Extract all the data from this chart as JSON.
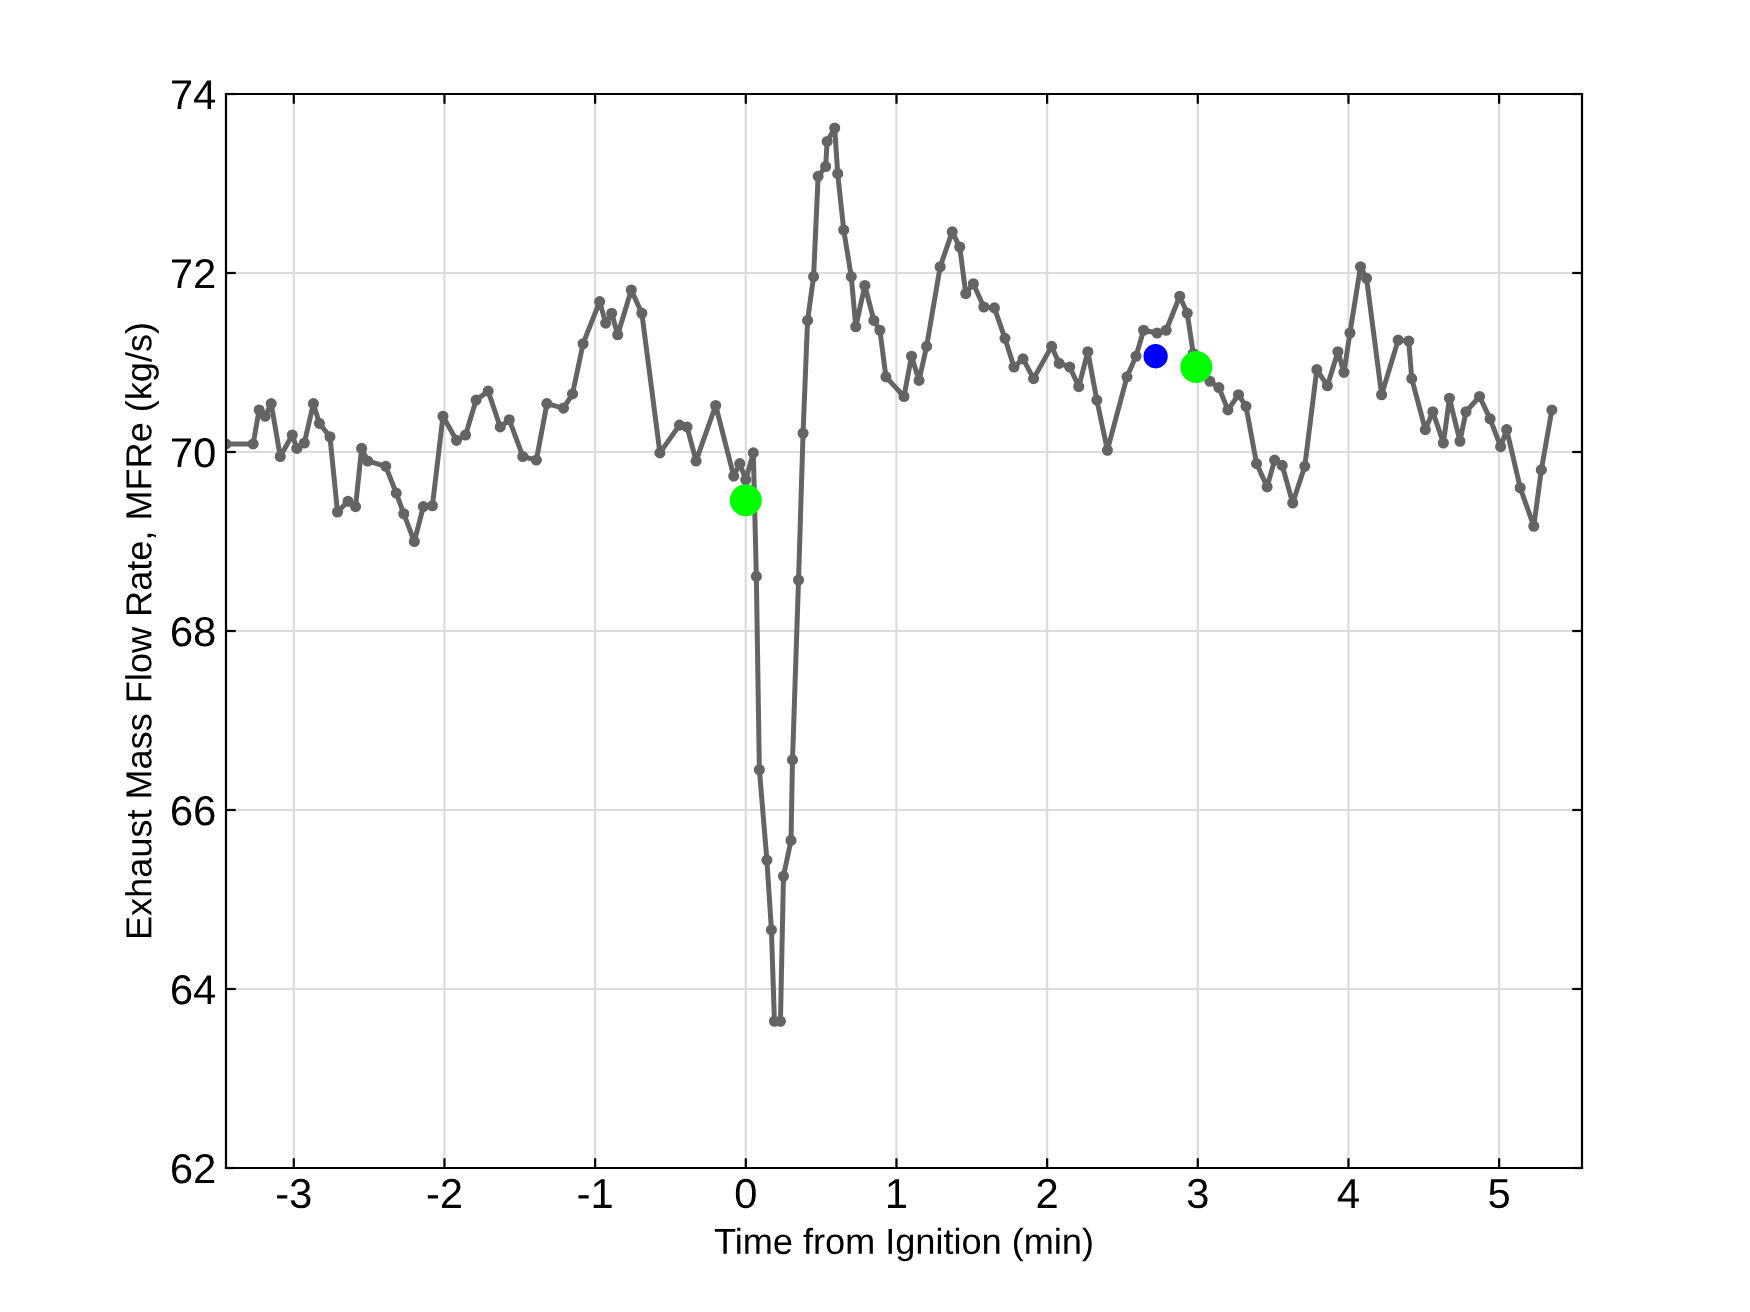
{
  "chart_data": {
    "type": "line",
    "xlabel": "Time from Ignition (min)",
    "ylabel": "Exhaust Mass Flow Rate, MFRe (kg/s)",
    "xlim": [
      -3.45,
      5.55
    ],
    "ylim": [
      62,
      74
    ],
    "xticks": [
      -3,
      -2,
      -1,
      0,
      1,
      2,
      3,
      4,
      5
    ],
    "yticks": [
      62,
      64,
      66,
      68,
      70,
      72,
      74
    ],
    "grid": true,
    "legend": false,
    "series": [
      {
        "color": "#646464",
        "marker": "circle",
        "line_style": "solid",
        "x": [
          -3.45,
          -3.27,
          -3.23,
          -3.19,
          -3.15,
          -3.09,
          -3.01,
          -2.98,
          -2.93,
          -2.87,
          -2.83,
          -2.76,
          -2.71,
          -2.64,
          -2.59,
          -2.55,
          -2.51,
          -2.39,
          -2.32,
          -2.27,
          -2.2,
          -2.14,
          -2.08,
          -2.01,
          -1.92,
          -1.86,
          -1.79,
          -1.71,
          -1.63,
          -1.57,
          -1.48,
          -1.39,
          -1.32,
          -1.21,
          -1.15,
          -1.08,
          -0.97,
          -0.93,
          -0.89,
          -0.85,
          -0.76,
          -0.69,
          -0.57,
          -0.44,
          -0.39,
          -0.33,
          -0.2,
          -0.08,
          -0.04,
          0.0,
          0.05,
          0.07,
          0.09,
          0.14,
          0.17,
          0.19,
          0.23,
          0.25,
          0.3,
          0.31,
          0.35,
          0.38,
          0.41,
          0.45,
          0.48,
          0.53,
          0.54,
          0.59,
          0.61,
          0.65,
          0.7,
          0.73,
          0.79,
          0.85,
          0.89,
          0.93,
          1.05,
          1.1,
          1.15,
          1.2,
          1.29,
          1.37,
          1.42,
          1.46,
          1.51,
          1.58,
          1.65,
          1.72,
          1.78,
          1.84,
          1.91,
          2.03,
          2.08,
          2.15,
          2.21,
          2.27,
          2.33,
          2.4,
          2.53,
          2.59,
          2.64,
          2.73,
          2.79,
          2.88,
          2.93,
          2.97,
          3.08,
          3.14,
          3.2,
          3.27,
          3.32,
          3.39,
          3.46,
          3.51,
          3.56,
          3.63,
          3.71,
          3.79,
          3.86,
          3.93,
          3.97,
          4.01,
          4.08,
          4.12,
          4.22,
          4.33,
          4.4,
          4.42,
          4.51,
          4.56,
          4.63,
          4.67,
          4.74,
          4.78,
          4.87,
          4.94,
          5.01,
          5.05,
          5.14,
          5.23,
          5.28,
          5.35
        ],
        "values": [
          70.09,
          70.09,
          70.47,
          70.4,
          70.54,
          69.95,
          70.19,
          70.04,
          70.1,
          70.54,
          70.32,
          70.17,
          69.33,
          69.45,
          69.39,
          70.04,
          69.9,
          69.84,
          69.54,
          69.31,
          69.0,
          69.39,
          69.4,
          70.4,
          70.13,
          70.19,
          70.58,
          70.68,
          70.28,
          70.36,
          69.95,
          69.91,
          70.54,
          70.49,
          70.65,
          71.21,
          71.68,
          71.44,
          71.55,
          71.31,
          71.81,
          71.55,
          69.99,
          70.3,
          70.28,
          69.9,
          70.52,
          69.73,
          69.87,
          69.69,
          69.99,
          68.61,
          66.45,
          65.44,
          64.66,
          63.64,
          63.64,
          65.26,
          65.66,
          66.56,
          68.57,
          70.21,
          71.47,
          71.96,
          73.08,
          73.19,
          73.47,
          73.62,
          73.11,
          72.48,
          71.96,
          71.4,
          71.86,
          71.47,
          71.36,
          70.84,
          70.62,
          71.07,
          70.8,
          71.18,
          72.07,
          72.46,
          72.29,
          71.77,
          71.88,
          71.62,
          71.61,
          71.27,
          70.95,
          71.04,
          70.82,
          71.18,
          70.99,
          70.95,
          70.73,
          71.12,
          70.58,
          70.02,
          70.84,
          71.07,
          71.36,
          71.33,
          71.36,
          71.74,
          71.55,
          71.1,
          70.79,
          70.72,
          70.47,
          70.64,
          70.51,
          69.87,
          69.61,
          69.91,
          69.85,
          69.43,
          69.84,
          70.92,
          70.74,
          71.12,
          70.89,
          71.33,
          72.07,
          71.94,
          70.64,
          71.25,
          71.24,
          70.82,
          70.25,
          70.45,
          70.1,
          70.6,
          70.12,
          70.45,
          70.62,
          70.37,
          70.06,
          70.25,
          69.6,
          69.17,
          69.8,
          70.47
        ]
      },
      {
        "type": "scatter",
        "color": "#00ff00",
        "marker": "circle",
        "x": [
          0.0
        ],
        "values": [
          69.46
        ]
      },
      {
        "type": "scatter",
        "color": "#00ff00",
        "marker": "circle",
        "x": [
          2.99
        ],
        "values": [
          70.95
        ]
      },
      {
        "type": "scatter",
        "color": "#0000ff",
        "marker": "circle",
        "x": [
          2.72
        ],
        "values": [
          71.07
        ]
      }
    ]
  }
}
